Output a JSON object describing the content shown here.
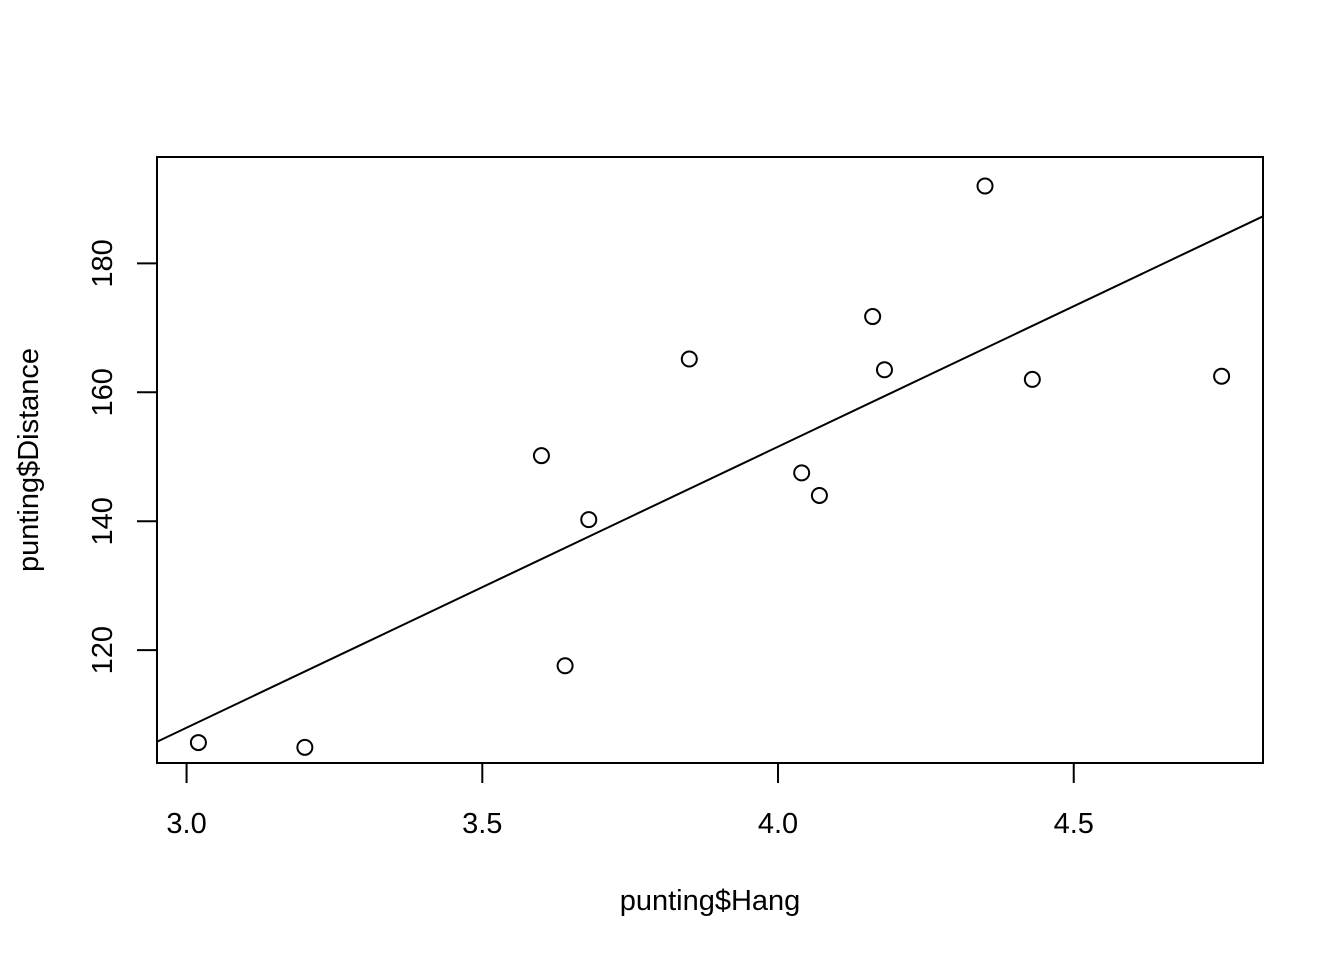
{
  "chart_data": {
    "type": "scatter",
    "title": "",
    "xlabel": "punting$Hang",
    "ylabel": "punting$Distance",
    "xlim": [
      2.95,
      4.82
    ],
    "ylim": [
      102.5,
      196.5
    ],
    "x_ticks": [
      3.0,
      3.5,
      4.0,
      4.5
    ],
    "x_tick_labels": [
      "3.0",
      "3.5",
      "4.0",
      "4.5"
    ],
    "y_ticks": [
      120,
      140,
      160,
      180
    ],
    "y_tick_labels": [
      "120",
      "140",
      "160",
      "180"
    ],
    "grid": false,
    "legend": "none",
    "points": [
      {
        "x": 3.02,
        "y": 105.67
      },
      {
        "x": 3.2,
        "y": 104.93
      },
      {
        "x": 3.6,
        "y": 150.17
      },
      {
        "x": 3.64,
        "y": 117.59
      },
      {
        "x": 3.68,
        "y": 140.25
      },
      {
        "x": 3.85,
        "y": 165.17
      },
      {
        "x": 4.04,
        "y": 147.5
      },
      {
        "x": 4.07,
        "y": 144.0
      },
      {
        "x": 4.16,
        "y": 171.75
      },
      {
        "x": 4.18,
        "y": 163.5
      },
      {
        "x": 4.35,
        "y": 192.0
      },
      {
        "x": 4.43,
        "y": 162.0
      },
      {
        "x": 4.75,
        "y": 162.5
      }
    ],
    "regression_line": {
      "x": [
        2.95,
        4.82
      ],
      "y": [
        105.8,
        187.3
      ]
    },
    "colors": {
      "background": "#ffffff",
      "ink": "#000000"
    }
  }
}
